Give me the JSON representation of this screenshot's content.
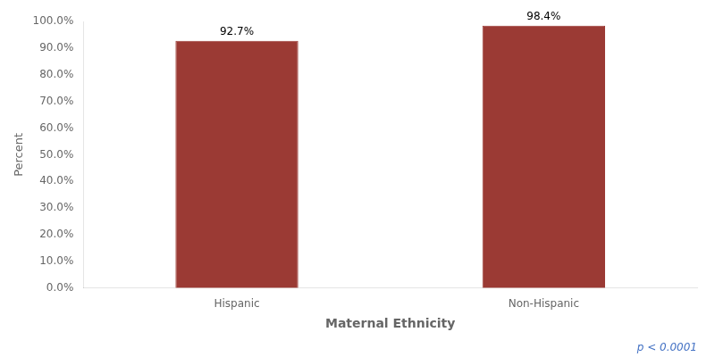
{
  "chart_data": {
    "type": "bar",
    "categories": [
      "Hispanic",
      "Non-Hispanic"
    ],
    "values": [
      92.7,
      98.4
    ],
    "value_labels": [
      "92.7%",
      "98.4%"
    ],
    "data_labels": true,
    "color": "#9B3A34",
    "xlabel": "Maternal Ethnicity",
    "ylabel": "Percent",
    "ylim": [
      0,
      100
    ],
    "yticks": [
      {
        "value": 0,
        "label": "0.0%"
      },
      {
        "value": 10,
        "label": "10.0%"
      },
      {
        "value": 20,
        "label": "20.0%"
      },
      {
        "value": 30,
        "label": "30.0%"
      },
      {
        "value": 40,
        "label": "40.0%"
      },
      {
        "value": 50,
        "label": "50.0%"
      },
      {
        "value": 60,
        "label": "60.0%"
      },
      {
        "value": 70,
        "label": "70.0%"
      },
      {
        "value": 80,
        "label": "80.0%"
      },
      {
        "value": 90,
        "label": "90.0%"
      },
      {
        "value": 100,
        "label": "100.0%"
      }
    ],
    "grid": false,
    "annotations": [
      {
        "text": "p < 0.0001",
        "color": "#4472C4"
      }
    ]
  }
}
